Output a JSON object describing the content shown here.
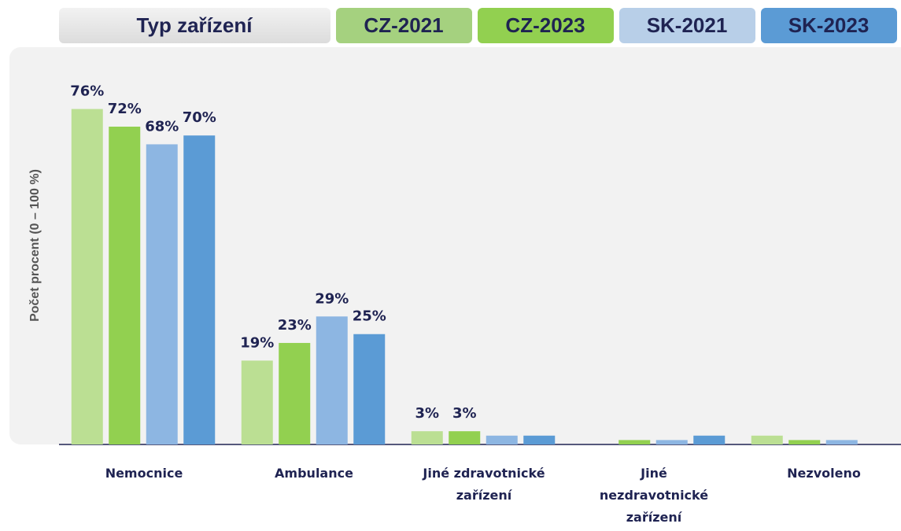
{
  "chart_data": {
    "type": "bar",
    "legend_title": "Typ zařízení",
    "y_axis_label": "Počet procent  (0 – 100 %)",
    "categories": [
      "Nemocnice",
      "Ambulance",
      "Jiné zdravotnické zařízení",
      "Jiné nezdravotnické zařízení",
      "Nezvoleno"
    ],
    "series": [
      {
        "name": "CZ-2021",
        "color": "#bbdf93",
        "legend_color": "#a5d17f",
        "values": [
          76,
          19,
          3,
          0,
          2
        ],
        "value_labels": [
          "76%",
          "19%",
          "3%",
          null,
          null
        ]
      },
      {
        "name": "CZ-2023",
        "color": "#92d050",
        "legend_color": "#92d050",
        "values": [
          72,
          23,
          3,
          1,
          1
        ],
        "value_labels": [
          "72%",
          "23%",
          "3%",
          null,
          null
        ]
      },
      {
        "name": "SK-2021",
        "color": "#8db6e2",
        "legend_color": "#b8cfe8",
        "values": [
          68,
          29,
          2,
          1,
          1
        ],
        "value_labels": [
          "68%",
          "29%",
          null,
          null,
          null
        ]
      },
      {
        "name": "SK-2023",
        "color": "#5b9bd5",
        "legend_color": "#5b9bd5",
        "values": [
          70,
          25,
          2,
          2,
          0
        ],
        "value_labels": [
          "70%",
          "25%",
          null,
          null,
          null
        ]
      }
    ],
    "ylim": [
      0,
      90
    ]
  }
}
